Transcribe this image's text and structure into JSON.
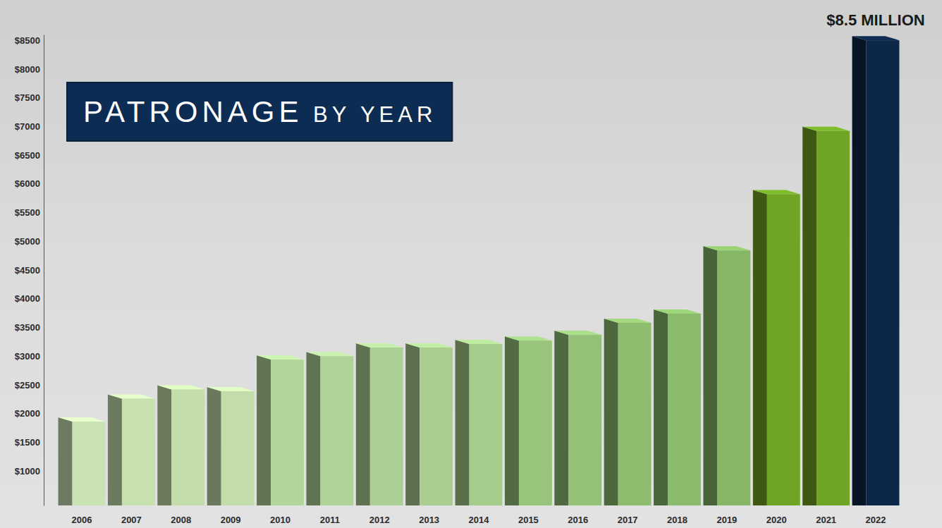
{
  "chart_data": {
    "type": "bar",
    "title": "PATRONAGE BY YEAR",
    "annotation": "$8.5 MILLION",
    "categories": [
      "2006",
      "2007",
      "2008",
      "2009",
      "2010",
      "2011",
      "2012",
      "2013",
      "2014",
      "2015",
      "2016",
      "2017",
      "2018",
      "2019",
      "2020",
      "2021",
      "2022"
    ],
    "values": [
      1860,
      2260,
      2420,
      2390,
      2940,
      3000,
      3150,
      3150,
      3210,
      3270,
      3370,
      3580,
      3740,
      4840,
      5820,
      6920,
      8500
    ],
    "colors": [
      "#c9e2b3",
      "#c6e0ae",
      "#c4deab",
      "#c3ddaa",
      "#b3d59b",
      "#b0d398",
      "#acd093",
      "#a9ce90",
      "#a6cc8c",
      "#98c47c",
      "#94c177",
      "#8fbd70",
      "#8aba6b",
      "#86b766",
      "#6fa424",
      "#6fa424",
      "#0d2748"
    ],
    "ylim": [
      400,
      8600
    ],
    "yticks": [
      {
        "value": 1000,
        "label": "$1000"
      },
      {
        "value": 1500,
        "label": "$1500"
      },
      {
        "value": 2000,
        "label": "$2000"
      },
      {
        "value": 2500,
        "label": "$2500"
      },
      {
        "value": 3000,
        "label": "$3000"
      },
      {
        "value": 3500,
        "label": "$3500"
      },
      {
        "value": 4000,
        "label": "$4000"
      },
      {
        "value": 4500,
        "label": "$4500"
      },
      {
        "value": 5000,
        "label": "$5000"
      },
      {
        "value": 5500,
        "label": "$5500"
      },
      {
        "value": 6000,
        "label": "$6000"
      },
      {
        "value": 6500,
        "label": "$6500"
      },
      {
        "value": 7000,
        "label": "$7000"
      },
      {
        "value": 7500,
        "label": "$7500"
      },
      {
        "value": 8000,
        "label": "$8000"
      },
      {
        "value": 8500,
        "label": "$8500"
      }
    ],
    "grid": false
  }
}
